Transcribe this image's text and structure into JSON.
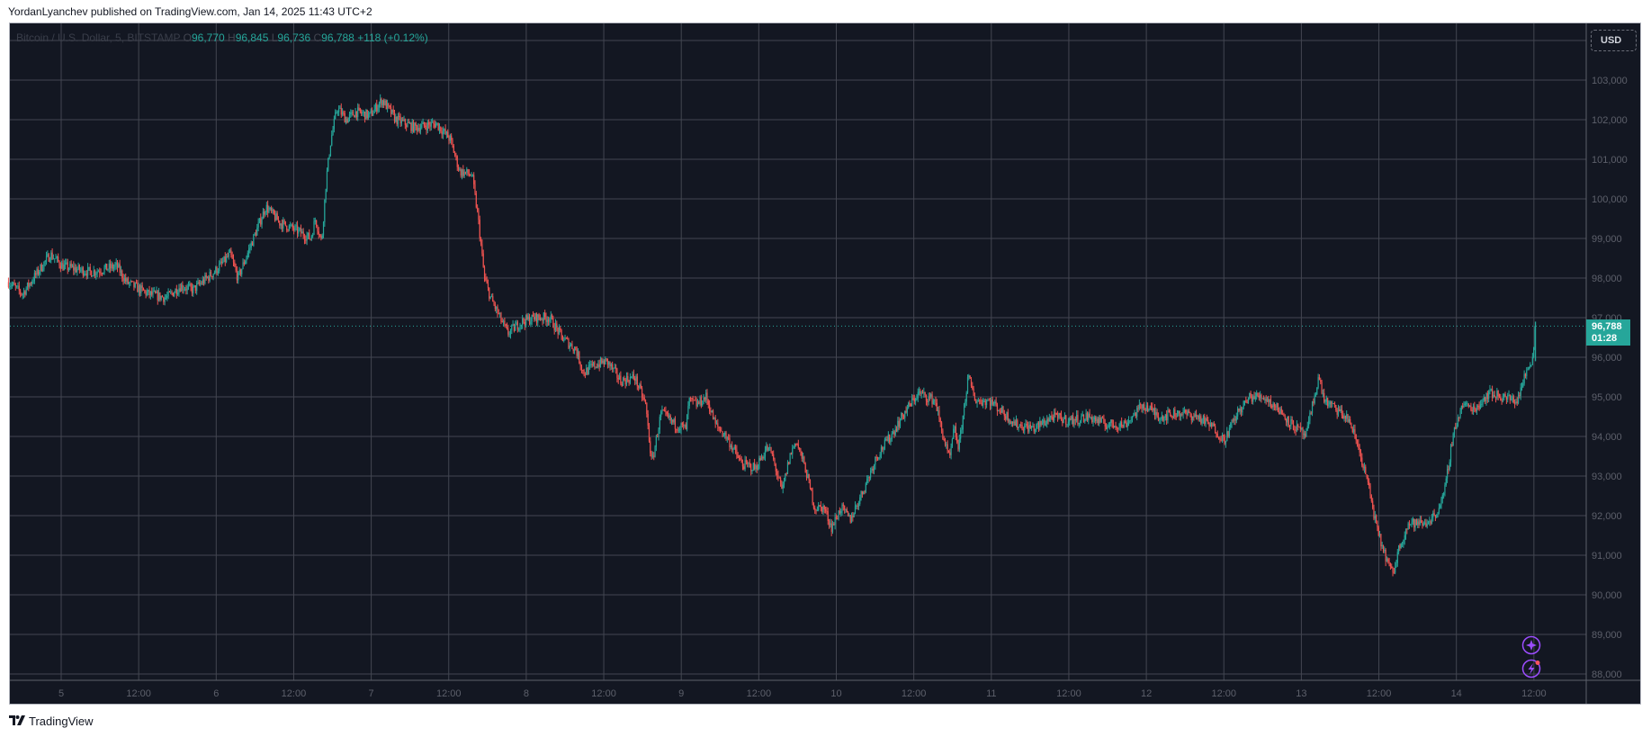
{
  "header": {
    "published_by": "YordanLyanchev published on TradingView.com, Jan 14, 2025 11:43 UTC+2"
  },
  "legend": {
    "symbol": "Bitcoin / U.S. Dollar, 5, BITSTAMP",
    "open_label": "O",
    "open": "96,770",
    "high_label": "H",
    "high": "96,845",
    "low_label": "L",
    "low": "96,736",
    "close_label": "C",
    "close": "96,788",
    "change": "+118 (+0.12%)"
  },
  "currency_button": "USD",
  "last_price": {
    "price": "96,788",
    "countdown": "01:28"
  },
  "footer": {
    "brand": "TradingView",
    "logo_mark": "TV"
  },
  "colors": {
    "background": "#131722",
    "up": "#26a69a",
    "down": "#ef5350",
    "grid": "#5d606b",
    "accent_icon": "#9c4dff"
  },
  "icons": [
    "ai-sparkle-icon",
    "lightning-alert-icon"
  ],
  "chart_data": {
    "type": "line",
    "title": "Bitcoin / U.S. Dollar, 5, BITSTAMP",
    "xlabel": "",
    "ylabel": "USD",
    "ylim": [
      87500,
      104500
    ],
    "grid": true,
    "legend_position": "top-left",
    "x_ticks": [
      "5",
      "12:00",
      "6",
      "12:00",
      "7",
      "12:00",
      "8",
      "12:00",
      "9",
      "12:00",
      "10",
      "12:00",
      "11",
      "12:00",
      "12",
      "12:00",
      "13",
      "12:00",
      "14",
      "12:00"
    ],
    "y_ticks": [
      "103,000",
      "102,000",
      "101,000",
      "100,000",
      "99,000",
      "98,000",
      "97,000",
      "96,000",
      "95,000",
      "94,000",
      "93,000",
      "92,000",
      "91,000",
      "90,000",
      "89,000",
      "88,000"
    ],
    "y_tick_values": [
      103000,
      102000,
      101000,
      100000,
      99000,
      98000,
      97000,
      96000,
      95000,
      94000,
      93000,
      92000,
      91000,
      90000,
      89000,
      88000
    ],
    "x_unit": "days since Jan 5 00:00",
    "series": [
      {
        "name": "BTCUSD close (approx.)",
        "points": [
          [
            -0.34,
            97900
          ],
          [
            -0.25,
            97600
          ],
          [
            -0.16,
            98100
          ],
          [
            -0.07,
            98600
          ],
          [
            0.01,
            98300
          ],
          [
            0.19,
            98150
          ],
          [
            0.36,
            98300
          ],
          [
            0.42,
            97900
          ],
          [
            0.56,
            97600
          ],
          [
            0.68,
            97500
          ],
          [
            0.77,
            97800
          ],
          [
            0.85,
            97700
          ],
          [
            1.0,
            98200
          ],
          [
            1.09,
            98600
          ],
          [
            1.14,
            98000
          ],
          [
            1.26,
            99200
          ],
          [
            1.32,
            99800
          ],
          [
            1.41,
            99400
          ],
          [
            1.52,
            99200
          ],
          [
            1.61,
            99000
          ],
          [
            1.64,
            99500
          ],
          [
            1.68,
            98900
          ],
          [
            1.71,
            100500
          ],
          [
            1.74,
            101500
          ],
          [
            1.78,
            102300
          ],
          [
            1.84,
            102000
          ],
          [
            1.9,
            102200
          ],
          [
            1.99,
            102100
          ],
          [
            2.07,
            102500
          ],
          [
            2.16,
            102000
          ],
          [
            2.28,
            101800
          ],
          [
            2.42,
            101900
          ],
          [
            2.51,
            101500
          ],
          [
            2.57,
            100700
          ],
          [
            2.65,
            100600
          ],
          [
            2.69,
            99500
          ],
          [
            2.73,
            98000
          ],
          [
            2.77,
            97500
          ],
          [
            2.83,
            97000
          ],
          [
            2.88,
            96600
          ],
          [
            2.97,
            96900
          ],
          [
            3.06,
            97000
          ],
          [
            3.15,
            97000
          ],
          [
            3.23,
            96500
          ],
          [
            3.32,
            96200
          ],
          [
            3.37,
            95600
          ],
          [
            3.44,
            95800
          ],
          [
            3.52,
            95900
          ],
          [
            3.61,
            95400
          ],
          [
            3.7,
            95500
          ],
          [
            3.77,
            94800
          ],
          [
            3.81,
            93300
          ],
          [
            3.87,
            94600
          ],
          [
            3.96,
            94300
          ],
          [
            4.03,
            94200
          ],
          [
            4.05,
            94900
          ],
          [
            4.1,
            94800
          ],
          [
            4.16,
            95000
          ],
          [
            4.22,
            94300
          ],
          [
            4.29,
            94000
          ],
          [
            4.39,
            93300
          ],
          [
            4.48,
            93200
          ],
          [
            4.55,
            93700
          ],
          [
            4.58,
            93600
          ],
          [
            4.65,
            92600
          ],
          [
            4.7,
            93500
          ],
          [
            4.74,
            93900
          ],
          [
            4.8,
            93200
          ],
          [
            4.86,
            92200
          ],
          [
            4.92,
            92200
          ],
          [
            4.97,
            91700
          ],
          [
            5.03,
            92200
          ],
          [
            5.09,
            91900
          ],
          [
            5.18,
            92700
          ],
          [
            5.26,
            93500
          ],
          [
            5.35,
            94000
          ],
          [
            5.44,
            94600
          ],
          [
            5.53,
            95100
          ],
          [
            5.58,
            95000
          ],
          [
            5.64,
            94900
          ],
          [
            5.67,
            94300
          ],
          [
            5.73,
            93400
          ],
          [
            5.76,
            94200
          ],
          [
            5.79,
            93700
          ],
          [
            5.85,
            95500
          ],
          [
            5.9,
            94900
          ],
          [
            5.99,
            94900
          ],
          [
            6.05,
            94700
          ],
          [
            6.16,
            94300
          ],
          [
            6.28,
            94200
          ],
          [
            6.39,
            94500
          ],
          [
            6.51,
            94400
          ],
          [
            6.63,
            94500
          ],
          [
            6.74,
            94300
          ],
          [
            6.86,
            94300
          ],
          [
            6.98,
            94800
          ],
          [
            7.09,
            94500
          ],
          [
            7.21,
            94600
          ],
          [
            7.33,
            94500
          ],
          [
            7.44,
            94200
          ],
          [
            7.5,
            93900
          ],
          [
            7.59,
            94600
          ],
          [
            7.67,
            95000
          ],
          [
            7.76,
            95000
          ],
          [
            7.85,
            94700
          ],
          [
            7.94,
            94300
          ],
          [
            8.03,
            94000
          ],
          [
            8.11,
            95500
          ],
          [
            8.15,
            94900
          ],
          [
            8.25,
            94600
          ],
          [
            8.31,
            94400
          ],
          [
            8.37,
            93700
          ],
          [
            8.43,
            92800
          ],
          [
            8.49,
            91600
          ],
          [
            8.54,
            91000
          ],
          [
            8.59,
            90500
          ],
          [
            8.63,
            91200
          ],
          [
            8.69,
            91800
          ],
          [
            8.75,
            91800
          ],
          [
            8.8,
            91800
          ],
          [
            8.86,
            92000
          ],
          [
            8.92,
            92500
          ],
          [
            8.98,
            94100
          ],
          [
            9.04,
            94800
          ],
          [
            9.12,
            94700
          ],
          [
            9.21,
            95100
          ],
          [
            9.3,
            95000
          ],
          [
            9.39,
            94900
          ],
          [
            9.44,
            95500
          ],
          [
            9.49,
            96000
          ],
          [
            9.51,
            96788
          ]
        ]
      }
    ],
    "last_value": 96788,
    "annotations": [
      "96,788 / 01:28 last price label"
    ]
  }
}
